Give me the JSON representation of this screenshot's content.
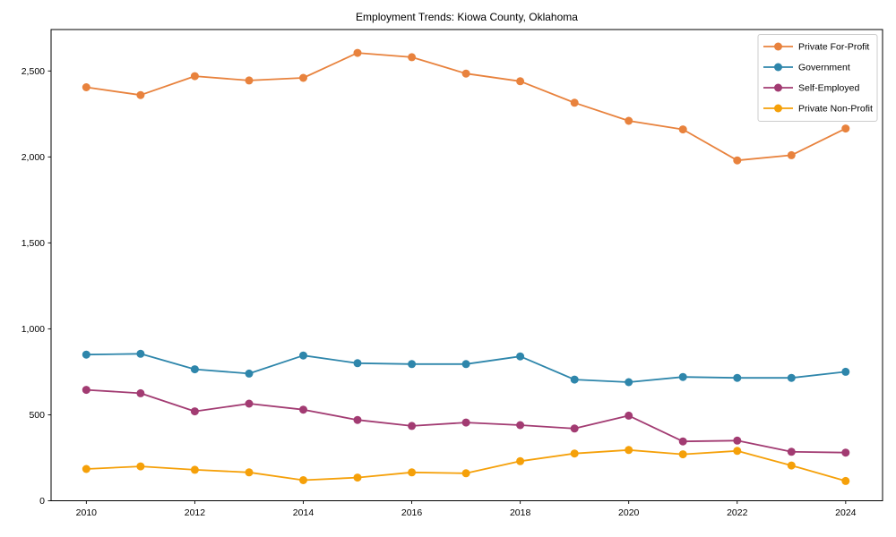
{
  "chart_data": {
    "type": "line",
    "title": "Employment Trends: Kiowa County, Oklahoma",
    "xlabel": "",
    "ylabel": "",
    "x": [
      2010,
      2011,
      2012,
      2013,
      2014,
      2015,
      2016,
      2017,
      2018,
      2019,
      2020,
      2021,
      2022,
      2023,
      2024
    ],
    "series": [
      {
        "name": "Private For-Profit",
        "color": "#E8823D",
        "values": [
          2405,
          2360,
          2470,
          2445,
          2460,
          2605,
          2580,
          2485,
          2440,
          2315,
          2210,
          2160,
          1980,
          2010,
          2165
        ]
      },
      {
        "name": "Government",
        "color": "#2E86AB",
        "values": [
          850,
          855,
          765,
          740,
          845,
          800,
          795,
          795,
          840,
          705,
          690,
          720,
          715,
          715,
          750
        ]
      },
      {
        "name": "Self-Employed",
        "color": "#A23B72",
        "values": [
          645,
          625,
          520,
          565,
          530,
          470,
          435,
          455,
          440,
          420,
          495,
          345,
          350,
          285,
          280
        ]
      },
      {
        "name": "Private Non-Profit",
        "color": "#F5A009",
        "values": [
          185,
          200,
          180,
          165,
          120,
          135,
          165,
          160,
          230,
          275,
          295,
          270,
          290,
          205,
          115
        ]
      }
    ],
    "xlim": [
      2009.35,
      2024.68
    ],
    "ylim": [
      0,
      2741
    ],
    "xticks": [
      2010,
      2012,
      2014,
      2016,
      2018,
      2020,
      2022,
      2024
    ],
    "yticks": [
      0,
      500,
      1000,
      1500,
      2000,
      2500
    ],
    "ytick_labels": [
      "0",
      "500",
      "1,000",
      "1,500",
      "2,000",
      "2,500"
    ],
    "grid": false,
    "legend_position": "upper right",
    "axis_color": "#000000",
    "legend_border_color": "#cccccc",
    "legend_bg_color": "#ffffff"
  }
}
